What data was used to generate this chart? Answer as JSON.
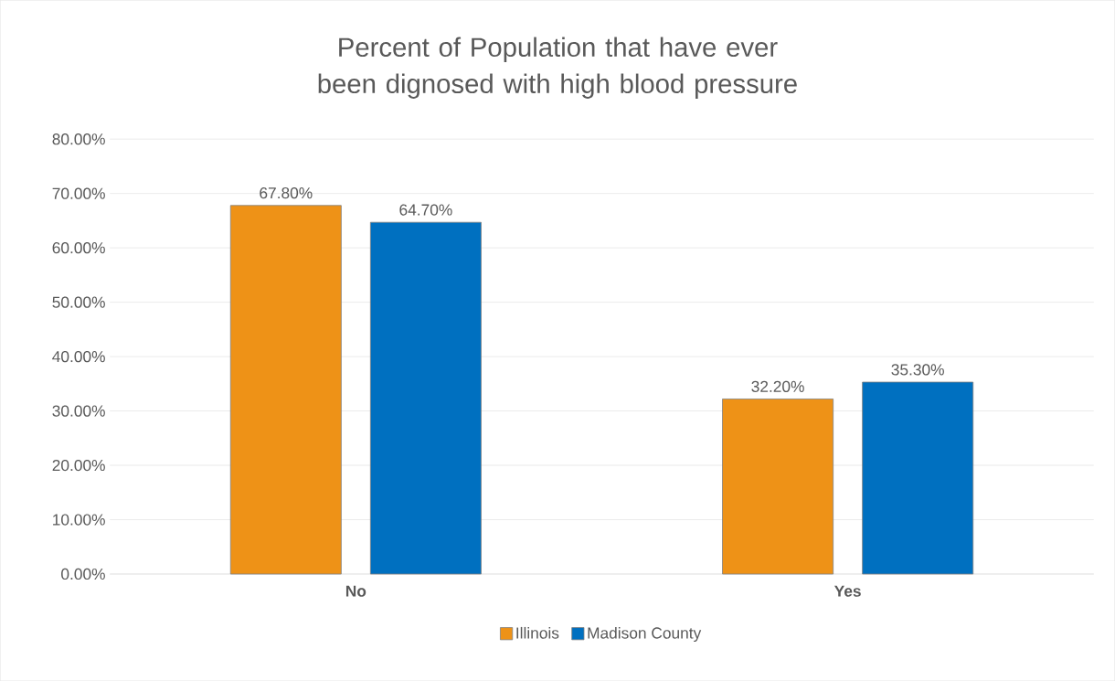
{
  "chart_data": {
    "type": "bar",
    "title": "Percent of Population that have ever been dignosed with high blood pressure",
    "categories": [
      "No",
      "Yes"
    ],
    "series": [
      {
        "name": "Illinois",
        "color": "#ee9217",
        "values": [
          67.8,
          32.2
        ],
        "value_labels": [
          "67.80%",
          "32.20%"
        ]
      },
      {
        "name": "Madison County",
        "color": "#0070c0",
        "values": [
          64.7,
          35.3
        ],
        "value_labels": [
          "64.70%",
          "35.30%"
        ]
      }
    ],
    "ylim": [
      0,
      80
    ],
    "yticks": [
      {
        "value": 0,
        "label": "0.00%"
      },
      {
        "value": 10,
        "label": "10.00%"
      },
      {
        "value": 20,
        "label": "20.00%"
      },
      {
        "value": 30,
        "label": "30.00%"
      },
      {
        "value": 40,
        "label": "40.00%"
      },
      {
        "value": 50,
        "label": "50.00%"
      },
      {
        "value": 60,
        "label": "60.00%"
      },
      {
        "value": 70,
        "label": "70.00%"
      },
      {
        "value": 80,
        "label": "80.00%"
      }
    ],
    "grid": "y",
    "legend": "bottom"
  }
}
